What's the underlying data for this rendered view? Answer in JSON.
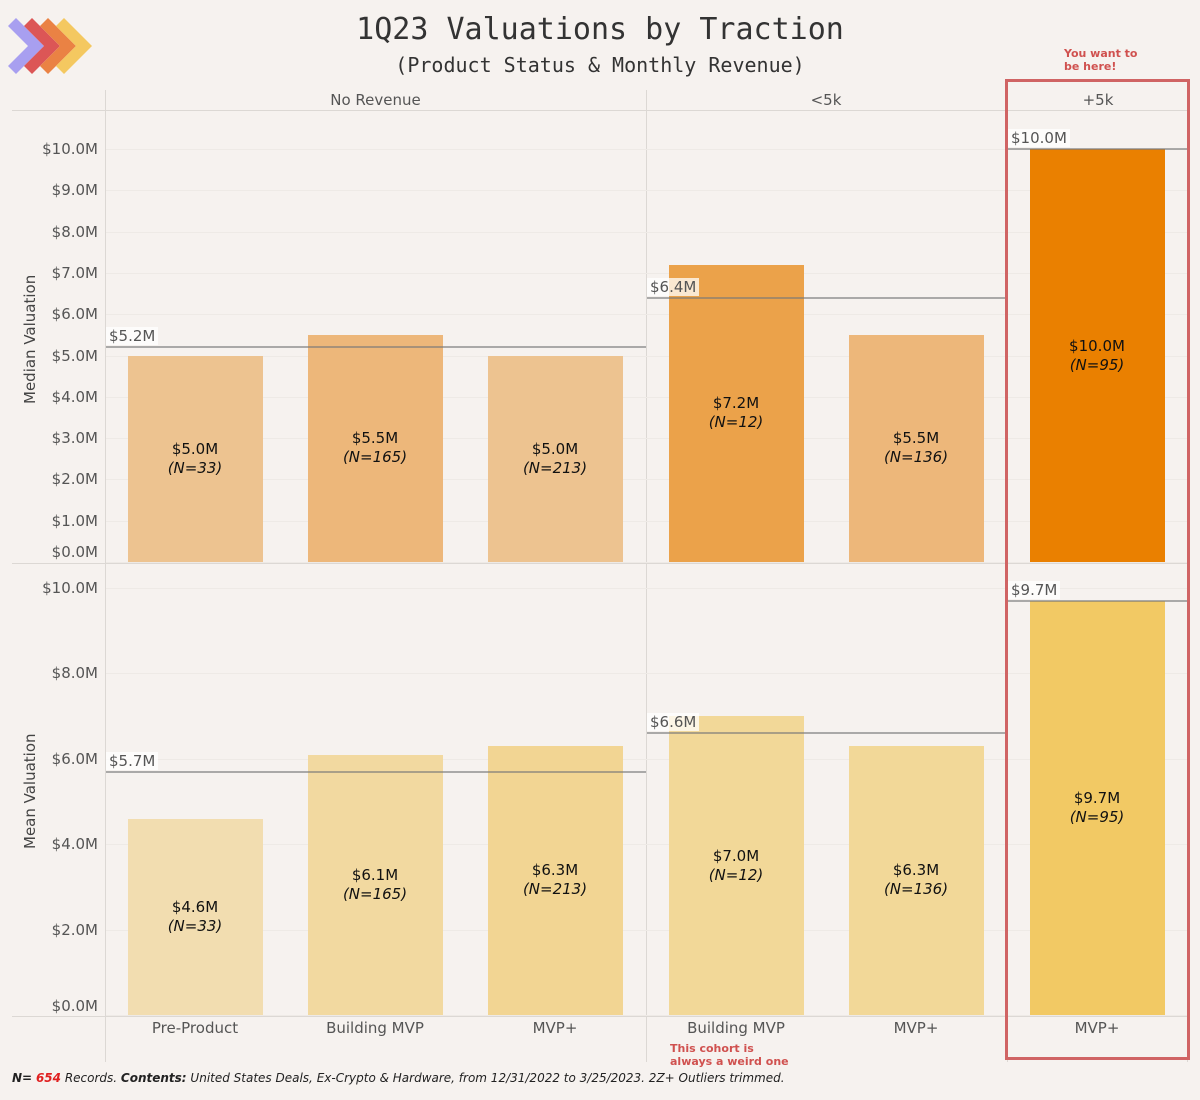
{
  "logo": {
    "colors": [
      "#a89ff0",
      "#dc5656",
      "#ea8244",
      "#f4c860"
    ]
  },
  "chart_data": [
    {
      "type": "bar",
      "title": "1Q23 Valuations by Traction",
      "subtitle": "(Product Status & Monthly Revenue)",
      "facets": [
        "No Revenue",
        "<5k",
        "+5k"
      ],
      "categories": [
        "Pre-Product",
        "Building MVP",
        "MVP+",
        "Building MVP",
        "MVP+",
        "MVP+"
      ],
      "category_facets": [
        "No Revenue",
        "No Revenue",
        "No Revenue",
        "<5k",
        "<5k",
        "+5k"
      ],
      "ylabel": "Median Valuation",
      "ylim": [
        0,
        10.0
      ],
      "yticks": [
        0,
        1,
        2,
        3,
        4,
        5,
        6,
        7,
        8,
        9,
        10
      ],
      "ytick_labels": [
        "$0.0M",
        "$1.0M",
        "$2.0M",
        "$3.0M",
        "$4.0M",
        "$5.0M",
        "$6.0M",
        "$7.0M",
        "$8.0M",
        "$9.0M",
        "$10.0M"
      ],
      "grid": true,
      "values": [
        5.0,
        5.5,
        5.0,
        7.2,
        5.5,
        10.0
      ],
      "value_labels": [
        "$5.0M",
        "$5.5M",
        "$5.0M",
        "$7.2M",
        "$5.5M",
        "$10.0M"
      ],
      "n_labels": [
        "(N=33)",
        "(N=165)",
        "(N=213)",
        "(N=12)",
        "(N=136)",
        "(N=95)"
      ],
      "colors": [
        "#edc390",
        "#edb77a",
        "#edc390",
        "#eba24a",
        "#edb77a",
        "#ea8000"
      ],
      "reference_lines": [
        {
          "facet": "No Revenue",
          "value": 5.2,
          "label": "$5.2M"
        },
        {
          "facet": "<5k",
          "value": 6.4,
          "label": "$6.4M"
        },
        {
          "facet": "+5k",
          "value": 10.0,
          "label": "$10.0M"
        }
      ]
    },
    {
      "type": "bar",
      "facets": [
        "No Revenue",
        "<5k",
        "+5k"
      ],
      "categories": [
        "Pre-Product",
        "Building MVP",
        "MVP+",
        "Building MVP",
        "MVP+",
        "MVP+"
      ],
      "category_facets": [
        "No Revenue",
        "No Revenue",
        "No Revenue",
        "<5k",
        "<5k",
        "+5k"
      ],
      "ylabel": "Mean Valuation",
      "ylim": [
        0,
        10.0
      ],
      "yticks": [
        0,
        2,
        4,
        6,
        8,
        10
      ],
      "ytick_labels": [
        "$0.0M",
        "$2.0M",
        "$4.0M",
        "$6.0M",
        "$8.0M",
        "$10.0M"
      ],
      "grid": true,
      "values": [
        4.6,
        6.1,
        6.3,
        7.0,
        6.3,
        9.7
      ],
      "value_labels": [
        "$4.6M",
        "$6.1M",
        "$6.3M",
        "$7.0M",
        "$6.3M",
        "$9.7M"
      ],
      "n_labels": [
        "(N=33)",
        "(N=165)",
        "(N=213)",
        "(N=12)",
        "(N=136)",
        "(N=95)"
      ],
      "colors": [
        "#f2ddb0",
        "#f2d9a0",
        "#f2d593",
        "#f2d898",
        "#f2d898",
        "#f2c964"
      ],
      "reference_lines": [
        {
          "facet": "No Revenue",
          "value": 5.7,
          "label": "$5.7M"
        },
        {
          "facet": "<5k",
          "value": 6.6,
          "label": "$6.6M"
        },
        {
          "facet": "+5k",
          "value": 9.7,
          "label": "$9.7M"
        }
      ]
    }
  ],
  "annotations": {
    "highlight": "You want to be here!",
    "highlight_lines": [
      "You want to",
      "be here!"
    ],
    "cohort_note_lines": [
      "This cohort is",
      "always a weird one"
    ],
    "accent": "#d0514f"
  },
  "footer": {
    "n_label": "N=",
    "n_value": "654",
    "records": " Records. ",
    "contents_label": "Contents:",
    "contents_text": " United States Deals, Ex-Crypto & Hardware, from  12/31/2022 to 3/25/2023. 2Z+ Outliers trimmed."
  }
}
